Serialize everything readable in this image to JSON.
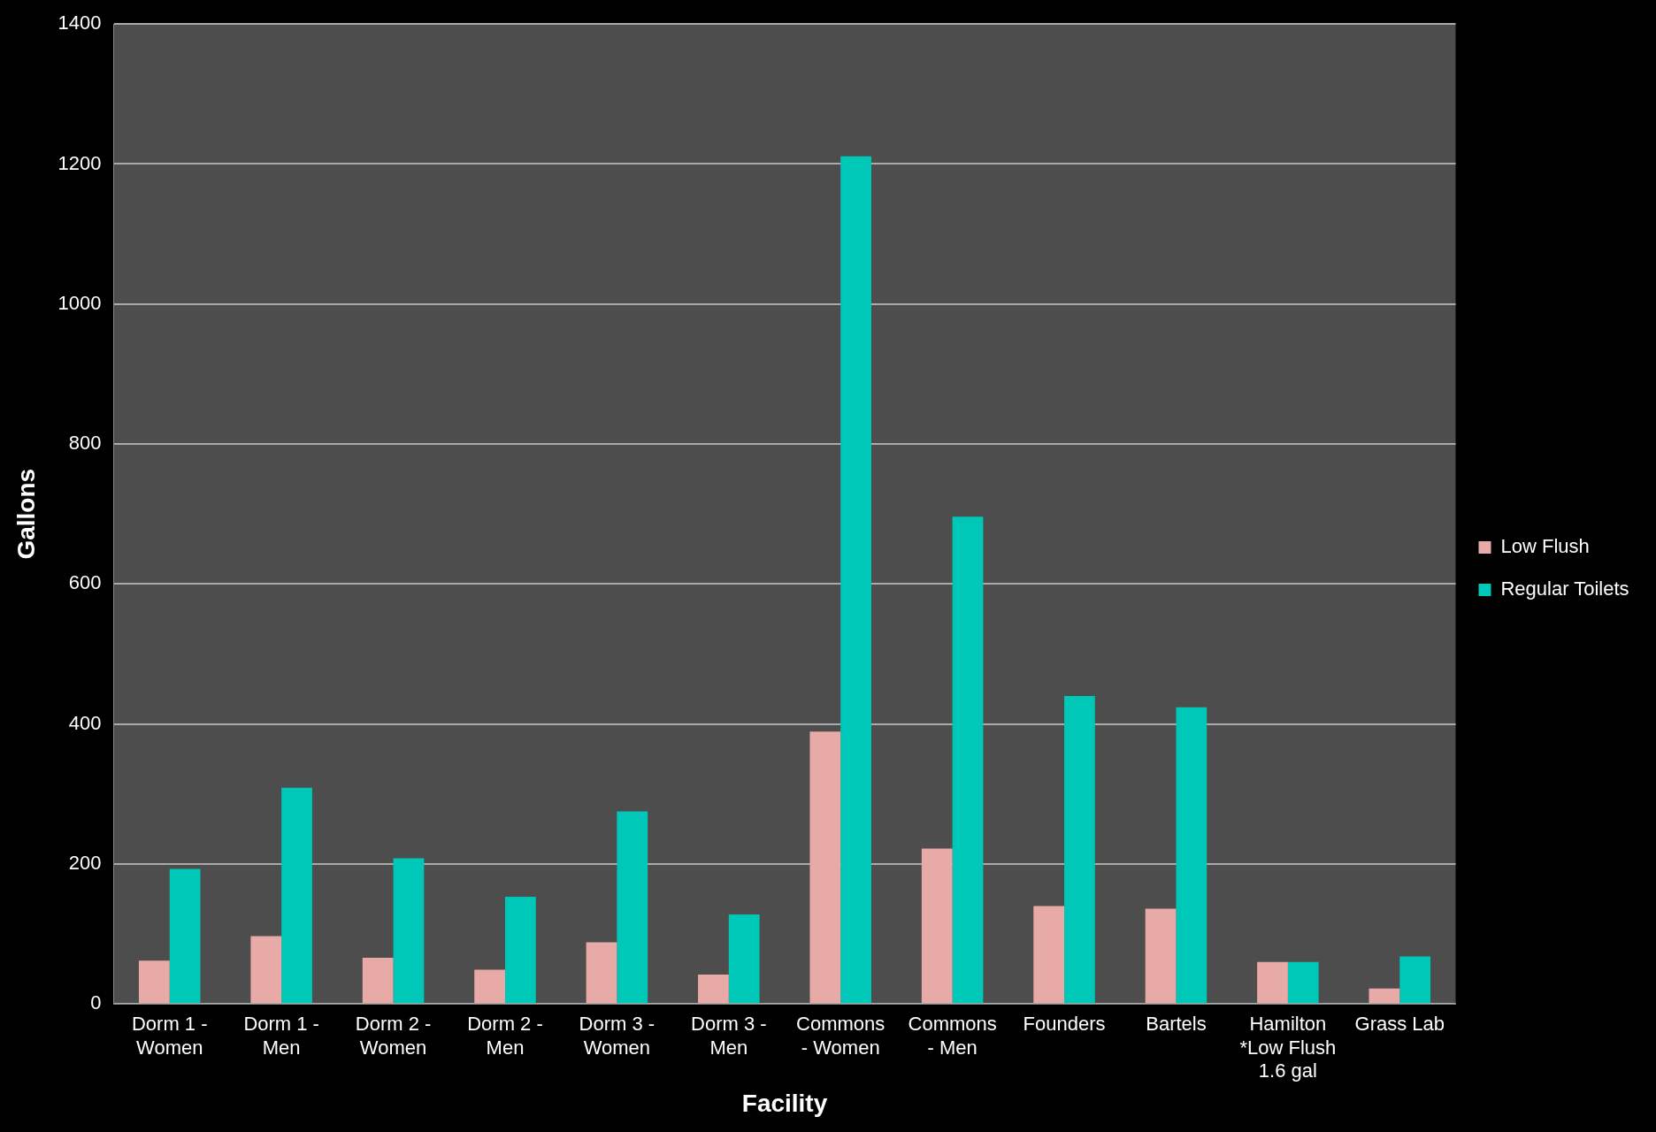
{
  "chart_data": {
    "type": "bar",
    "categories": [
      "Dorm 1 - Women",
      "Dorm 1 - Men",
      "Dorm 2 - Women",
      "Dorm 2 - Men",
      "Dorm 3 - Women",
      "Dorm 3 - Men",
      "Commons - Women",
      "Commons - Men",
      "Founders",
      "Bartels",
      "Hamilton *Low Flush 1.6 gal",
      "Grass Lab"
    ],
    "series": [
      {
        "name": "Low Flush",
        "color": "#e8aaa6",
        "values": [
          62,
          97,
          66,
          49,
          88,
          42,
          389,
          222,
          140,
          136,
          60,
          22
        ]
      },
      {
        "name": "Regular Toilets",
        "color": "#00c8b8",
        "values": [
          193,
          309,
          208,
          153,
          275,
          128,
          1211,
          696,
          440,
          424,
          60,
          68
        ]
      }
    ],
    "xlabel": "Facility",
    "ylabel": "Gallons",
    "ylim": [
      0,
      1400
    ],
    "yticks": [
      0,
      200,
      400,
      600,
      800,
      1000,
      1200,
      1400
    ],
    "grid": "y",
    "legend": "right"
  }
}
